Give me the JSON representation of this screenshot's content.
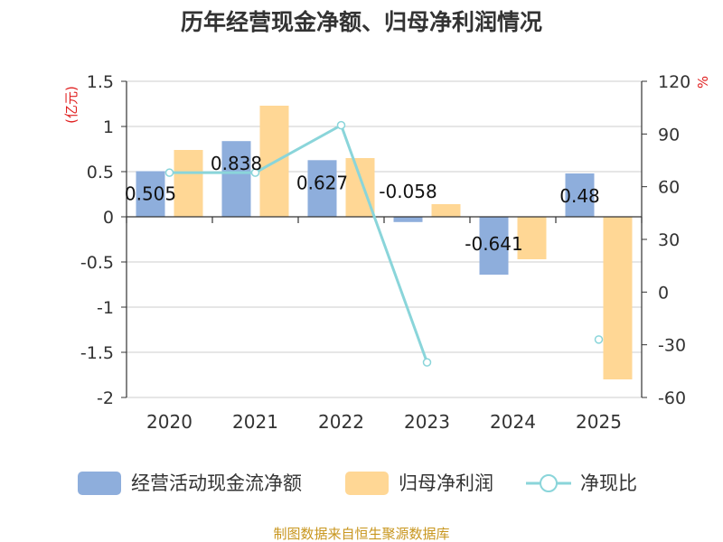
{
  "chart_data": {
    "type": "bar+line",
    "title": "历年经营现金净额、归母净利润情况",
    "categories": [
      "2020",
      "2021",
      "2022",
      "2023",
      "2024",
      "2025"
    ],
    "series": [
      {
        "name": "经营活动现金流净额",
        "axis": "left",
        "type": "bar",
        "color": "#8eaedc",
        "values": [
          0.505,
          0.838,
          0.627,
          -0.058,
          -0.641,
          0.48
        ],
        "labels": [
          "0.505",
          "0.838",
          "0.627",
          "-0.058",
          "-0.641",
          "0.48"
        ]
      },
      {
        "name": "归母净利润",
        "axis": "left",
        "type": "bar",
        "color": "#ffd795",
        "values": [
          0.74,
          1.23,
          0.65,
          0.14,
          -0.47,
          -1.8
        ]
      },
      {
        "name": "净现比",
        "axis": "right",
        "type": "line",
        "color": "#8ad5da",
        "values": [
          68,
          68,
          95,
          -40,
          null,
          -27
        ]
      }
    ],
    "left_axis": {
      "label": "(亿元)",
      "min": -2,
      "max": 1.5,
      "ticks": [
        1.5,
        1,
        0.5,
        0,
        -0.5,
        -1,
        -1.5,
        -2
      ],
      "tick_labels": [
        "1.5",
        "1",
        "0.5",
        "0",
        "-0.5",
        "-1",
        "-1.5",
        "-2"
      ]
    },
    "right_axis": {
      "label": "%",
      "min": -60,
      "max": 120,
      "ticks": [
        120,
        90,
        60,
        30,
        0,
        -30,
        -60
      ],
      "tick_labels": [
        "120",
        "90",
        "60",
        "30",
        "0",
        "-30",
        "-60"
      ]
    },
    "legend": [
      "经营活动现金流净额",
      "归母净利润",
      "净现比"
    ],
    "legend_position": "bottom",
    "grid": true
  },
  "source": "制图数据来自恒生聚源数据库"
}
